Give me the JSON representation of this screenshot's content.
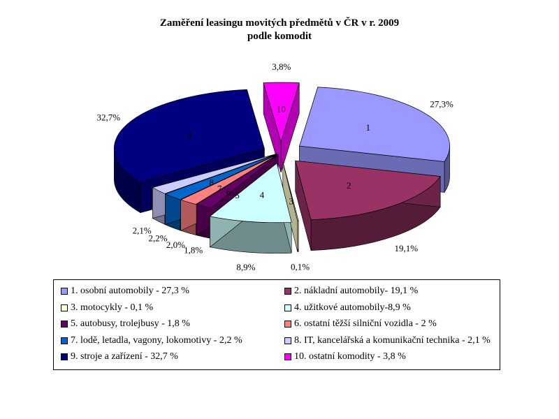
{
  "chart_data": {
    "type": "pie",
    "title": "Zaměření leasingu movitých předmětů v ČR v r. 2009",
    "subtitle": "podle komodit",
    "slices": [
      {
        "id": "1",
        "value": 27.3,
        "label": "27,3%",
        "color": "#9999ff",
        "legend": "1. osobní automobily - 27,3 %"
      },
      {
        "id": "2",
        "value": 19.1,
        "label": "19,1%",
        "color": "#993366",
        "legend": "2. nákladní automobily- 19,1 %"
      },
      {
        "id": "3",
        "value": 0.1,
        "label": "0,1%",
        "color": "#ffffcc",
        "legend": "3. motocykly - 0,1 %"
      },
      {
        "id": "4",
        "value": 8.9,
        "label": "8,9%",
        "color": "#ccffff",
        "legend": "4. užitkové automobily-8,9 %"
      },
      {
        "id": "5",
        "value": 1.8,
        "label": "1,8%",
        "color": "#660066",
        "legend": "5. autobusy, trolejbusy - 1,8 %"
      },
      {
        "id": "6",
        "value": 2.0,
        "label": "2,0%",
        "color": "#ff8080",
        "legend": "6. ostatní těžší silniční vozidla - 2 %"
      },
      {
        "id": "7",
        "value": 2.2,
        "label": "2,2%",
        "color": "#0066cc",
        "legend": "7. lodě, letadla, vagony, lokomotivy - 2,2 %"
      },
      {
        "id": "8",
        "value": 2.1,
        "label": "2,1%",
        "color": "#ccccff",
        "legend": "8. IT, kancelářská a komunikační technika - 2,1 %"
      },
      {
        "id": "9",
        "value": 32.7,
        "label": "32,7%",
        "color": "#000080",
        "legend": "9. stroje a zařízení - 32,7 %"
      },
      {
        "id": "10",
        "value": 3.8,
        "label": "3,8%",
        "color": "#ff00ff",
        "legend": "10. ostatní komodity - 3,8 %"
      }
    ],
    "legend_position": "bottom"
  }
}
